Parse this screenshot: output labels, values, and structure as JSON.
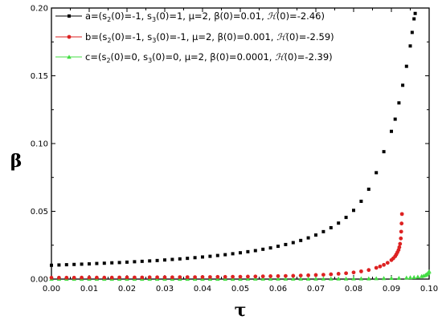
{
  "chart_data": {
    "type": "scatter",
    "title": "",
    "xlabel": "τ",
    "ylabel": "β",
    "xlim": [
      0.0,
      0.1
    ],
    "ylim": [
      0.0,
      0.2
    ],
    "xticks": [
      0.0,
      0.01,
      0.02,
      0.03,
      0.04,
      0.05,
      0.06,
      0.07,
      0.08,
      0.09,
      0.1
    ],
    "xtick_labels": [
      "0.00",
      "0.01",
      "0.02",
      "0.03",
      "0.04",
      "0.05",
      "0.06",
      "0.07",
      "0.08",
      "0.09",
      "0.10"
    ],
    "yticks": [
      0.0,
      0.05,
      0.1,
      0.15,
      0.2
    ],
    "ytick_labels": [
      "0.00",
      "0.05",
      "0.10",
      "0.15",
      "0.20"
    ],
    "grid": false,
    "legend_position": "top-left",
    "series": [
      {
        "name": "a",
        "legend_parts": [
          "a=(s",
          "2",
          "(0)=-1, s",
          "3",
          "(0)=1, μ=2, β(0)=0.01, ",
          "ℋ",
          "(0)=-2.46)"
        ],
        "marker": "square",
        "color": "#000000",
        "x": [
          0.0,
          0.002,
          0.004,
          0.006,
          0.008,
          0.01,
          0.012,
          0.014,
          0.016,
          0.018,
          0.02,
          0.022,
          0.024,
          0.026,
          0.028,
          0.03,
          0.032,
          0.034,
          0.036,
          0.038,
          0.04,
          0.042,
          0.044,
          0.046,
          0.048,
          0.05,
          0.052,
          0.054,
          0.056,
          0.058,
          0.06,
          0.062,
          0.064,
          0.066,
          0.068,
          0.07,
          0.072,
          0.074,
          0.076,
          0.078,
          0.08,
          0.082,
          0.084,
          0.086,
          0.088,
          0.09,
          0.091,
          0.092,
          0.093,
          0.094,
          0.095,
          0.0955,
          0.096,
          0.0963
        ],
        "y": [
          0.0102,
          0.0104,
          0.0106,
          0.0108,
          0.011,
          0.0112,
          0.0115,
          0.0117,
          0.012,
          0.0122,
          0.0125,
          0.0128,
          0.0131,
          0.0134,
          0.0137,
          0.0141,
          0.0145,
          0.0149,
          0.0153,
          0.0158,
          0.0163,
          0.0168,
          0.0174,
          0.018,
          0.0187,
          0.0194,
          0.0202,
          0.021,
          0.022,
          0.023,
          0.0242,
          0.0255,
          0.0269,
          0.0285,
          0.0304,
          0.0325,
          0.035,
          0.0379,
          0.0413,
          0.0455,
          0.0507,
          0.0574,
          0.0663,
          0.0785,
          0.094,
          0.109,
          0.118,
          0.13,
          0.143,
          0.157,
          0.172,
          0.182,
          0.192,
          0.196
        ]
      },
      {
        "name": "b",
        "legend_parts": [
          "b=(s",
          "2",
          "(0)=-1, s",
          "3",
          "(0)=-1, μ=2, β(0)=0.001, ",
          "ℋ",
          "(0)=-2.59)"
        ],
        "marker": "circle",
        "color": "#dd2222",
        "x": [
          0.0,
          0.002,
          0.004,
          0.006,
          0.008,
          0.01,
          0.012,
          0.014,
          0.016,
          0.018,
          0.02,
          0.022,
          0.024,
          0.026,
          0.028,
          0.03,
          0.032,
          0.034,
          0.036,
          0.038,
          0.04,
          0.042,
          0.044,
          0.046,
          0.048,
          0.05,
          0.052,
          0.054,
          0.056,
          0.058,
          0.06,
          0.062,
          0.064,
          0.066,
          0.068,
          0.07,
          0.072,
          0.074,
          0.076,
          0.078,
          0.08,
          0.082,
          0.084,
          0.086,
          0.087,
          0.088,
          0.089,
          0.09,
          0.0905,
          0.091,
          0.0913,
          0.0916,
          0.0919,
          0.0921,
          0.0923,
          0.0925,
          0.0926,
          0.0927,
          0.0928
        ],
        "y": [
          0.001,
          0.001,
          0.001,
          0.001,
          0.0011,
          0.0011,
          0.0011,
          0.0011,
          0.0011,
          0.0012,
          0.0012,
          0.0012,
          0.0012,
          0.0013,
          0.0013,
          0.0013,
          0.0013,
          0.0014,
          0.0014,
          0.0014,
          0.0015,
          0.0015,
          0.0016,
          0.0016,
          0.0017,
          0.0017,
          0.0018,
          0.0019,
          0.002,
          0.0021,
          0.0022,
          0.0023,
          0.0024,
          0.0026,
          0.0028,
          0.003,
          0.0032,
          0.0035,
          0.0039,
          0.0043,
          0.0049,
          0.0057,
          0.0067,
          0.0083,
          0.0093,
          0.0105,
          0.012,
          0.014,
          0.0153,
          0.0168,
          0.0182,
          0.0198,
          0.0215,
          0.0235,
          0.026,
          0.03,
          0.035,
          0.041,
          0.048
        ]
      },
      {
        "name": "c",
        "legend_parts": [
          "c=(s",
          "2",
          "(0)=0, s",
          "3",
          "(0)=0, μ=2, β(0)=0.0001, ",
          "ℋ",
          "(0)=-2.39)"
        ],
        "marker": "triangle",
        "color": "#44dd44",
        "x": [
          0.0,
          0.002,
          0.004,
          0.006,
          0.008,
          0.01,
          0.012,
          0.014,
          0.016,
          0.018,
          0.02,
          0.022,
          0.024,
          0.026,
          0.028,
          0.03,
          0.032,
          0.034,
          0.036,
          0.038,
          0.04,
          0.042,
          0.044,
          0.046,
          0.048,
          0.05,
          0.052,
          0.054,
          0.056,
          0.058,
          0.06,
          0.062,
          0.064,
          0.066,
          0.068,
          0.07,
          0.072,
          0.074,
          0.076,
          0.078,
          0.08,
          0.082,
          0.084,
          0.086,
          0.088,
          0.09,
          0.092,
          0.094,
          0.095,
          0.096,
          0.097,
          0.098,
          0.0985,
          0.099,
          0.0993,
          0.0996,
          0.0998,
          0.1
        ],
        "y": [
          0.0001,
          0.0001,
          0.0001,
          0.0001,
          0.0001,
          0.0001,
          0.0001,
          0.0001,
          0.0001,
          0.0001,
          0.0001,
          0.0001,
          0.0001,
          0.0001,
          0.0001,
          0.0001,
          0.0001,
          0.0001,
          0.0001,
          0.0001,
          0.0001,
          0.0001,
          0.0001,
          0.0001,
          0.0001,
          0.0001,
          0.0002,
          0.0002,
          0.0002,
          0.0002,
          0.0002,
          0.0002,
          0.0002,
          0.0002,
          0.0002,
          0.0002,
          0.0003,
          0.0003,
          0.0003,
          0.0003,
          0.0004,
          0.0004,
          0.0004,
          0.0005,
          0.0006,
          0.0007,
          0.0008,
          0.001,
          0.0012,
          0.0014,
          0.0017,
          0.0021,
          0.0024,
          0.0029,
          0.0034,
          0.0041,
          0.0048,
          0.0056
        ]
      }
    ]
  }
}
